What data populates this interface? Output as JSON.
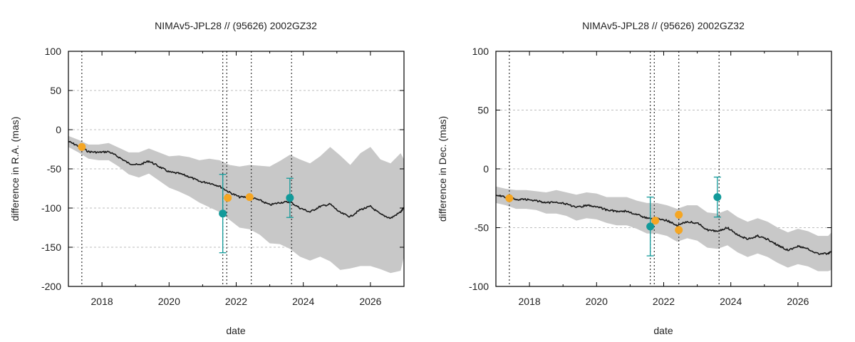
{
  "colors": {
    "band": "#c8c8c8",
    "model": "#1a1a1a",
    "orange": "#f5a623",
    "teal": "#129a9a",
    "grid": "#bdbdbd",
    "vline": "#333333"
  },
  "chart_data": [
    {
      "type": "line",
      "title": "NIMAv5-JPL28 // (95626) 2002GZ32",
      "xlabel": "date",
      "ylabel": "difference in R.A. (mas)",
      "xlim": [
        2017.0,
        2027.0
      ],
      "ylim": [
        -200,
        100
      ],
      "xticks": [
        2018,
        2020,
        2022,
        2024,
        2026
      ],
      "xtick_labels": [
        "2018",
        "2020",
        "2022",
        "2024",
        "2026"
      ],
      "yticks": [
        100,
        50,
        0,
        -50,
        -100,
        -150,
        -200
      ],
      "ytick_labels": [
        "100",
        "50",
        "0",
        "-50",
        "-100",
        "-150",
        "-200"
      ],
      "grid": true,
      "vertical_lines": [
        2017.4,
        2021.6,
        2021.72,
        2022.45,
        2023.65
      ],
      "model": {
        "x": [
          2017.0,
          2017.3,
          2017.6,
          2017.9,
          2018.2,
          2018.5,
          2018.8,
          2019.1,
          2019.4,
          2019.7,
          2020.0,
          2020.3,
          2020.6,
          2020.9,
          2021.2,
          2021.5,
          2021.8,
          2022.1,
          2022.4,
          2022.7,
          2023.0,
          2023.3,
          2023.6,
          2023.9,
          2024.2,
          2024.5,
          2024.8,
          2025.1,
          2025.4,
          2025.7,
          2026.0,
          2026.3,
          2026.6,
          2026.9,
          2027.0
        ],
        "center": [
          -15,
          -21,
          -28,
          -29,
          -28,
          -35,
          -43,
          -45,
          -40,
          -47,
          -54,
          -56,
          -60,
          -66,
          -68,
          -72,
          -80,
          -86,
          -86,
          -90,
          -96,
          -93,
          -92,
          -100,
          -105,
          -98,
          -95,
          -106,
          -111,
          -102,
          -98,
          -108,
          -113,
          -105,
          -100
        ],
        "upper": [
          -8,
          -13,
          -19,
          -19,
          -17,
          -23,
          -29,
          -29,
          -24,
          -29,
          -34,
          -33,
          -35,
          -39,
          -37,
          -39,
          -45,
          -47,
          -45,
          -46,
          -47,
          -40,
          -32,
          -38,
          -43,
          -34,
          -22,
          -33,
          -45,
          -30,
          -22,
          -38,
          -43,
          -30,
          -38
        ],
        "lower": [
          -22,
          -29,
          -37,
          -39,
          -39,
          -47,
          -57,
          -61,
          -56,
          -65,
          -74,
          -79,
          -85,
          -93,
          -99,
          -105,
          -115,
          -125,
          -127,
          -134,
          -145,
          -146,
          -152,
          -162,
          -167,
          -162,
          -168,
          -179,
          -177,
          -174,
          -174,
          -178,
          -183,
          -180,
          -162
        ]
      },
      "points": [
        {
          "x": 2017.4,
          "y": -22,
          "color": "orange"
        },
        {
          "x": 2021.75,
          "y": -87,
          "color": "orange"
        },
        {
          "x": 2022.4,
          "y": -86,
          "color": "orange"
        },
        {
          "x": 2021.6,
          "y": -107,
          "err": 50,
          "color": "teal"
        },
        {
          "x": 2023.6,
          "y": -87,
          "err": 25,
          "color": "teal"
        }
      ]
    },
    {
      "type": "line",
      "title": "NIMAv5-JPL28 // (95626) 2002GZ32",
      "xlabel": "date",
      "ylabel": "difference in Dec. (mas)",
      "xlim": [
        2017.0,
        2027.0
      ],
      "ylim": [
        -100,
        100
      ],
      "xticks": [
        2018,
        2020,
        2022,
        2024,
        2026
      ],
      "xtick_labels": [
        "2018",
        "2020",
        "2022",
        "2024",
        "2026"
      ],
      "yticks": [
        100,
        50,
        0,
        -50,
        -100
      ],
      "ytick_labels": [
        "100",
        "50",
        "0",
        "-50",
        "-100"
      ],
      "grid": true,
      "vertical_lines": [
        2017.4,
        2021.6,
        2021.72,
        2022.45,
        2023.65
      ],
      "model": {
        "x": [
          2017.0,
          2017.3,
          2017.6,
          2017.9,
          2018.2,
          2018.5,
          2018.8,
          2019.1,
          2019.4,
          2019.7,
          2020.0,
          2020.3,
          2020.6,
          2020.9,
          2021.2,
          2021.5,
          2021.8,
          2022.1,
          2022.4,
          2022.7,
          2023.0,
          2023.3,
          2023.6,
          2023.9,
          2024.2,
          2024.5,
          2024.8,
          2025.1,
          2025.4,
          2025.7,
          2026.0,
          2026.3,
          2026.6,
          2026.9,
          2027.0
        ],
        "center": [
          -22,
          -24,
          -26,
          -26,
          -27,
          -29,
          -28,
          -30,
          -33,
          -31,
          -32,
          -35,
          -36,
          -36,
          -39,
          -42,
          -42,
          -44,
          -48,
          -45,
          -46,
          -52,
          -53,
          -50,
          -56,
          -60,
          -57,
          -60,
          -65,
          -69,
          -66,
          -68,
          -72,
          -72,
          -70
        ],
        "upper": [
          -15,
          -17,
          -18,
          -18,
          -19,
          -20,
          -18,
          -20,
          -22,
          -20,
          -21,
          -24,
          -24,
          -24,
          -27,
          -29,
          -29,
          -31,
          -34,
          -31,
          -31,
          -37,
          -38,
          -35,
          -41,
          -45,
          -42,
          -45,
          -50,
          -54,
          -51,
          -53,
          -57,
          -57,
          -54
        ],
        "lower": [
          -29,
          -31,
          -34,
          -34,
          -35,
          -38,
          -38,
          -40,
          -44,
          -42,
          -43,
          -46,
          -48,
          -48,
          -51,
          -55,
          -55,
          -57,
          -62,
          -59,
          -61,
          -67,
          -68,
          -65,
          -71,
          -75,
          -72,
          -75,
          -80,
          -84,
          -81,
          -83,
          -87,
          -87,
          -86
        ]
      },
      "points": [
        {
          "x": 2017.4,
          "y": -25,
          "color": "orange"
        },
        {
          "x": 2021.75,
          "y": -44,
          "color": "orange"
        },
        {
          "x": 2022.45,
          "y": -39,
          "color": "orange"
        },
        {
          "x": 2022.45,
          "y": -52,
          "color": "orange"
        },
        {
          "x": 2021.6,
          "y": -49,
          "err": 25,
          "color": "teal"
        },
        {
          "x": 2023.6,
          "y": -24,
          "err": 17,
          "color": "teal"
        }
      ]
    }
  ]
}
